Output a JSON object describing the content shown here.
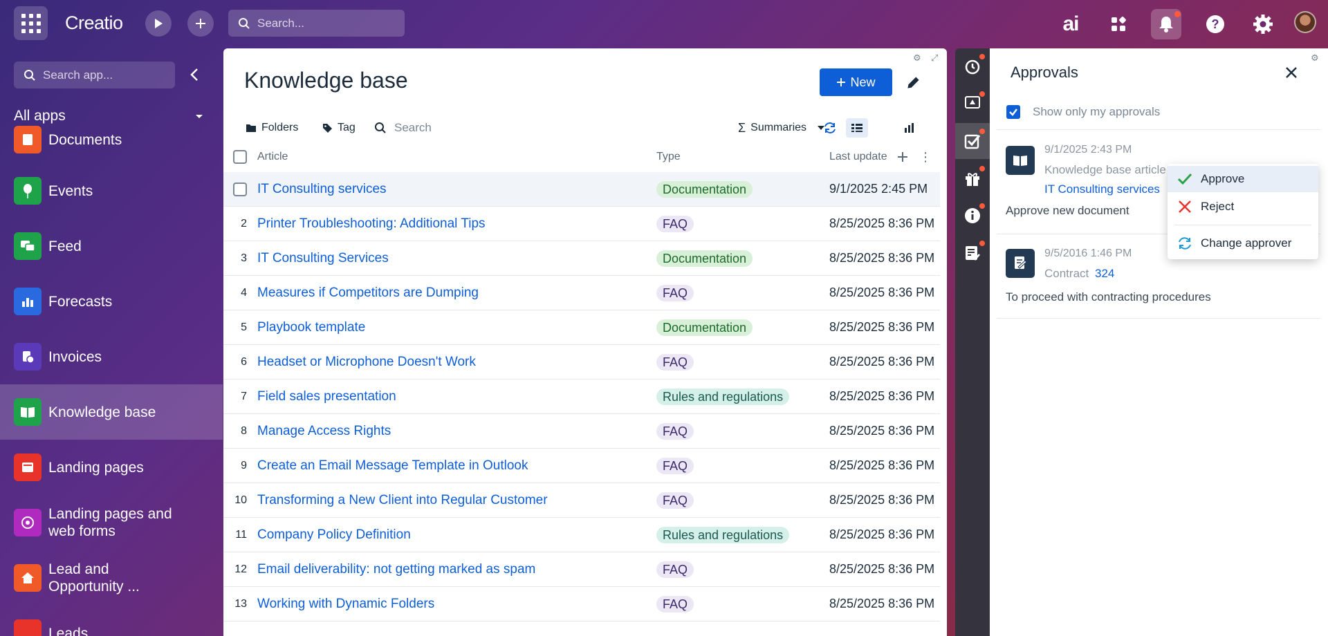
{
  "topbar": {
    "logo": "Creatio",
    "search_placeholder": "Search...",
    "ai_label": "ai"
  },
  "leftnav": {
    "search_placeholder": "Search app...",
    "all_apps": "All apps",
    "items": [
      {
        "label": "Documents",
        "color": "#f05a28"
      },
      {
        "label": "Events",
        "color": "#1ea24a"
      },
      {
        "label": "Feed",
        "color": "#1ea24a"
      },
      {
        "label": "Forecasts",
        "color": "#2a6ae0"
      },
      {
        "label": "Invoices",
        "color": "#5a3ab8"
      },
      {
        "label": "Knowledge base",
        "color": "#1ea24a",
        "active": true
      },
      {
        "label": "Landing pages",
        "color": "#e8332a"
      },
      {
        "label": "Landing pages and web forms",
        "color": "#b02ac0"
      },
      {
        "label": "Lead and Opportunity ...",
        "color": "#f05a28"
      },
      {
        "label": "Leads",
        "color": "#e8332a"
      }
    ]
  },
  "main": {
    "title": "Knowledge base",
    "new_button": "New",
    "toolbar": {
      "folders": "Folders",
      "tag": "Tag",
      "search_placeholder": "Search",
      "summaries": "Summaries"
    },
    "columns": {
      "article": "Article",
      "type": "Type",
      "last_update": "Last update"
    },
    "rows": [
      {
        "num": "",
        "title": "IT Consulting services",
        "type": "Documentation",
        "date": "9/1/2025 2:45 PM"
      },
      {
        "num": "2",
        "title": "Printer Troubleshooting: Additional Tips",
        "type": "FAQ",
        "date": "8/25/2025 8:36 PM"
      },
      {
        "num": "3",
        "title": "IT Consulting Services",
        "type": "Documentation",
        "date": "8/25/2025 8:36 PM"
      },
      {
        "num": "4",
        "title": "Measures if Competitors are Dumping",
        "type": "FAQ",
        "date": "8/25/2025 8:36 PM"
      },
      {
        "num": "5",
        "title": "Playbook template",
        "type": "Documentation",
        "date": "8/25/2025 8:36 PM"
      },
      {
        "num": "6",
        "title": "Headset or Microphone Doesn't Work",
        "type": "FAQ",
        "date": "8/25/2025 8:36 PM"
      },
      {
        "num": "7",
        "title": "Field sales presentation",
        "type": "Rules and regulations",
        "date": "8/25/2025 8:36 PM"
      },
      {
        "num": "8",
        "title": "Manage Access Rights",
        "type": "FAQ",
        "date": "8/25/2025 8:36 PM"
      },
      {
        "num": "9",
        "title": "Create an Email Message Template in Outlook",
        "type": "FAQ",
        "date": "8/25/2025 8:36 PM"
      },
      {
        "num": "10",
        "title": "Transforming a New Client into Regular Customer",
        "type": "FAQ",
        "date": "8/25/2025 8:36 PM"
      },
      {
        "num": "11",
        "title": "Company Policy Definition",
        "type": "Rules and regulations",
        "date": "8/25/2025 8:36 PM"
      },
      {
        "num": "12",
        "title": "Email deliverability: not getting marked as spam",
        "type": "FAQ",
        "date": "8/25/2025 8:36 PM"
      },
      {
        "num": "13",
        "title": "Working with Dynamic Folders",
        "type": "FAQ",
        "date": "8/25/2025 8:36 PM"
      }
    ]
  },
  "approvals": {
    "title": "Approvals",
    "filter_label": "Show only my approvals",
    "items": [
      {
        "date": "9/1/2025 2:43 PM",
        "kind": "Knowledge base article",
        "link": "IT Consulting services",
        "desc": "Approve new document"
      },
      {
        "date": "9/5/2016 1:46 PM",
        "kind": "Contract",
        "link": "324",
        "desc": "To proceed with contracting procedures"
      }
    ]
  },
  "context_menu": {
    "approve": "Approve",
    "reject": "Reject",
    "change_approver": "Change approver"
  },
  "colors": {
    "accent": "#0d5ed7",
    "rail": "#35343e",
    "notification_dot": "#ff5a3c"
  }
}
